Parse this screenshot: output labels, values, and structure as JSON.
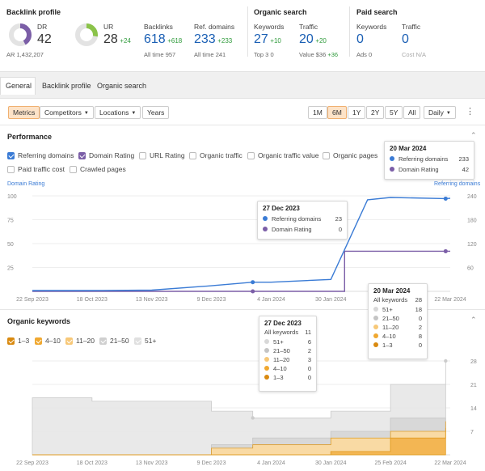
{
  "header": {
    "backlink_profile": {
      "title": "Backlink profile",
      "dr_label": "DR",
      "dr_value": "42",
      "ar_label": "AR",
      "ar_value": "1,432,207",
      "ur_label": "UR",
      "ur_value": "28",
      "ur_delta": "+24",
      "backlinks_label": "Backlinks",
      "backlinks_value": "618",
      "backlinks_delta": "+618",
      "backlinks_alltime_label": "All time",
      "backlinks_alltime": "957",
      "refdomains_label": "Ref. domains",
      "refdomains_value": "233",
      "refdomains_delta": "+233",
      "refdomains_alltime_label": "All time",
      "refdomains_alltime": "241"
    },
    "organic_search": {
      "title": "Organic search",
      "keywords_label": "Keywords",
      "keywords_value": "27",
      "keywords_delta": "+10",
      "top3_label": "Top 3",
      "top3_value": "0",
      "traffic_label": "Traffic",
      "traffic_value": "20",
      "traffic_delta": "+20",
      "value_label": "Value",
      "value_value": "$36",
      "value_delta": "+36"
    },
    "paid_search": {
      "title": "Paid search",
      "keywords_label": "Keywords",
      "keywords_value": "0",
      "ads_label": "Ads",
      "ads_value": "0",
      "traffic_label": "Traffic",
      "traffic_value": "0",
      "cost_label": "Cost",
      "cost_value": "N/A"
    }
  },
  "tabs": [
    "General",
    "Backlink profile",
    "Organic search"
  ],
  "toolbar": {
    "metrics": "Metrics",
    "competitors": "Competitors",
    "locations": "Locations",
    "years": "Years",
    "ranges": [
      "1M",
      "6M",
      "1Y",
      "2Y",
      "5Y",
      "All"
    ],
    "active_range": "6M",
    "interval": "Daily"
  },
  "performance": {
    "title": "Performance",
    "checkboxes": [
      {
        "label": "Referring domains",
        "checked": true,
        "color": "#3a7bd5"
      },
      {
        "label": "Domain Rating",
        "checked": true,
        "color": "#7b5ea7"
      },
      {
        "label": "URL Rating",
        "checked": false
      },
      {
        "label": "Organic traffic",
        "checked": false
      },
      {
        "label": "Organic traffic value",
        "checked": false
      },
      {
        "label": "Organic pages",
        "checked": false
      },
      {
        "label": "Paid traffic cost",
        "checked": false
      },
      {
        "label": "Crawled pages",
        "checked": false
      }
    ],
    "left_axis_title": "Domain Rating",
    "right_axis_title": "Referring domains",
    "left_ticks": [
      "100",
      "75",
      "50",
      "25"
    ],
    "right_ticks": [
      "240",
      "180",
      "120",
      "60"
    ],
    "x_ticks": [
      "22 Sep 2023",
      "18 Oct 2023",
      "13 Nov 2023",
      "9 Dec 2023",
      "4 Jan 2024",
      "30 Jan 2024",
      "25 Feb 2024",
      "22 Mar 2024"
    ],
    "tooltip_right": {
      "date": "20 Mar 2024",
      "rows": [
        {
          "label": "Referring domains",
          "value": "233"
        },
        {
          "label": "Domain Rating",
          "value": "42"
        }
      ]
    },
    "tooltip_mid": {
      "date": "27 Dec 2023",
      "rows": [
        {
          "label": "Referring domains",
          "value": "23"
        },
        {
          "label": "Domain Rating",
          "value": "0"
        }
      ]
    }
  },
  "organic_keywords": {
    "title": "Organic keywords",
    "legend": [
      {
        "label": "1–3",
        "color": "#e8a020"
      },
      {
        "label": "4–10",
        "color": "#f0b040"
      },
      {
        "label": "11–20",
        "color": "#f7cf8a"
      },
      {
        "label": "21–50",
        "color": "#d0d0d0"
      },
      {
        "label": "51+",
        "color": "#e4e4e4"
      }
    ],
    "right_ticks": [
      "28",
      "21",
      "14",
      "7"
    ],
    "x_ticks": [
      "22 Sep 2023",
      "18 Oct 2023",
      "13 Nov 2023",
      "9 Dec 2023",
      "4 Jan 2024",
      "30 Jan 2024",
      "25 Feb 2024",
      "22 Mar 2024"
    ],
    "tooltip_mid": {
      "date": "27 Dec 2023",
      "all_label": "All keywords",
      "all_value": "11",
      "rows": [
        {
          "label": "51+",
          "value": "6"
        },
        {
          "label": "21–50",
          "value": "2"
        },
        {
          "label": "11–20",
          "value": "3"
        },
        {
          "label": "4–10",
          "value": "0"
        },
        {
          "label": "1–3",
          "value": "0"
        }
      ]
    },
    "tooltip_right": {
      "date": "20 Mar 2024",
      "all_label": "All keywords",
      "all_value": "28",
      "rows": [
        {
          "label": "51+",
          "value": "18"
        },
        {
          "label": "21–50",
          "value": "0"
        },
        {
          "label": "11–20",
          "value": "2"
        },
        {
          "label": "4–10",
          "value": "8"
        },
        {
          "label": "1–3",
          "value": "0"
        }
      ]
    }
  },
  "chart_data": [
    {
      "type": "line",
      "title": "Performance",
      "x": [
        "22 Sep 2023",
        "18 Oct 2023",
        "13 Nov 2023",
        "9 Dec 2023",
        "27 Dec 2023",
        "4 Jan 2024",
        "30 Jan 2024",
        "5 Feb 2024",
        "15 Feb 2024",
        "25 Feb 2024",
        "20 Mar 2024",
        "22 Mar 2024"
      ],
      "series": [
        {
          "name": "Referring domains",
          "axis": "right",
          "values": [
            2,
            2,
            3,
            14,
            23,
            23,
            30,
            105,
            230,
            236,
            233,
            234
          ]
        },
        {
          "name": "Domain Rating",
          "axis": "left",
          "values": [
            0,
            0,
            0,
            0,
            0,
            0,
            0,
            42,
            42,
            42,
            42,
            42
          ]
        }
      ],
      "ylim_left": [
        0,
        100
      ],
      "ylim_right": [
        0,
        240
      ]
    },
    {
      "type": "area",
      "title": "Organic keywords",
      "x": [
        "22 Sep 2023",
        "18 Oct 2023",
        "13 Nov 2023",
        "9 Dec 2023",
        "27 Dec 2023",
        "4 Jan 2024",
        "30 Jan 2024",
        "25 Feb 2024",
        "20 Mar 2024"
      ],
      "series": [
        {
          "name": "1–3",
          "values": [
            0,
            0,
            0,
            0,
            0,
            0,
            0,
            0,
            0
          ]
        },
        {
          "name": "4–10",
          "values": [
            0,
            0,
            0,
            0,
            0,
            0,
            1,
            5,
            8
          ]
        },
        {
          "name": "11–20",
          "values": [
            0,
            0,
            0,
            2,
            3,
            3,
            4,
            2,
            2
          ]
        },
        {
          "name": "21–50",
          "values": [
            0,
            0,
            0,
            1,
            2,
            2,
            2,
            4,
            0
          ]
        },
        {
          "name": "51+",
          "values": [
            17,
            16,
            16,
            10,
            6,
            6,
            6,
            10,
            18
          ]
        }
      ],
      "ylim": [
        0,
        28
      ]
    }
  ]
}
